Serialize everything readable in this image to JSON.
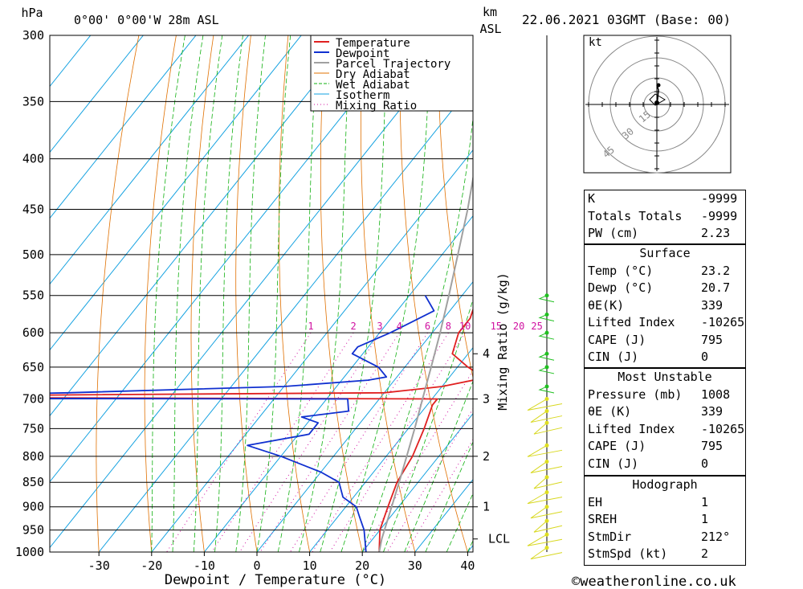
{
  "header": {
    "pressure_unit": "hPa",
    "location": "0°00' 0°00'W 28m ASL",
    "height_unit_line1": "km",
    "height_unit_line2": "ASL",
    "datetime": "22.06.2021 03GMT (Base: 00)"
  },
  "chart_data": {
    "type": "skewt",
    "xlabel": "Dewpoint / Temperature (°C)",
    "ylabel_left": "hPa",
    "ylabel_right": "Mixing Ratio (g/kg)",
    "pressure_levels": [
      300,
      350,
      400,
      450,
      500,
      550,
      600,
      650,
      700,
      750,
      800,
      850,
      900,
      950,
      1000
    ],
    "temperature_ticks": [
      -30,
      -20,
      -10,
      0,
      10,
      20,
      30,
      40
    ],
    "xlim": [
      -40,
      40
    ],
    "ylim": [
      1000,
      300
    ],
    "height_ticks_km": [
      {
        "label": "1",
        "pressure": 900
      },
      {
        "label": "2",
        "pressure": 800
      },
      {
        "label": "3",
        "pressure": 700
      },
      {
        "label": "4",
        "pressure": 630
      },
      {
        "label": "LCL",
        "pressure": 970
      }
    ],
    "mixing_ratio_labels": [
      "1",
      "2",
      "3",
      "4",
      "6",
      "8",
      "10",
      "15",
      "20",
      "25"
    ],
    "mixing_ratio_values": [
      1,
      2,
      3,
      4,
      6,
      8,
      10,
      15,
      20,
      25
    ],
    "legend": [
      "Temperature",
      "Dewpoint",
      "Parcel Trajectory",
      "Dry Adiabat",
      "Wet Adiabat",
      "Isotherm",
      "Mixing Ratio"
    ],
    "series": [
      {
        "name": "Temperature",
        "color": "#e02020",
        "points": [
          [
            1000,
            23.2
          ],
          [
            950,
            20
          ],
          [
            900,
            18
          ],
          [
            850,
            16
          ],
          [
            800,
            15
          ],
          [
            750,
            13
          ],
          [
            710,
            11
          ],
          [
            700,
            11
          ],
          [
            698,
            -70
          ],
          [
            696,
            -70
          ],
          [
            694,
            -70
          ],
          [
            690,
            0
          ],
          [
            680,
            10
          ],
          [
            670,
            15
          ],
          [
            660,
            15
          ],
          [
            650,
            12
          ],
          [
            630,
            7
          ],
          [
            600,
            5
          ],
          [
            580,
            5
          ],
          [
            550,
            3
          ]
        ]
      },
      {
        "name": "Dewpoint",
        "color": "#1030d0",
        "points": [
          [
            1000,
            20.7
          ],
          [
            950,
            17
          ],
          [
            920,
            14
          ],
          [
            900,
            12
          ],
          [
            880,
            8
          ],
          [
            850,
            5
          ],
          [
            830,
            0
          ],
          [
            800,
            -10
          ],
          [
            780,
            -18
          ],
          [
            760,
            -8
          ],
          [
            740,
            -8
          ],
          [
            730,
            -12
          ],
          [
            720,
            -4
          ],
          [
            700,
            -6
          ],
          [
            699,
            -90
          ],
          [
            697,
            -90
          ],
          [
            695,
            -90
          ],
          [
            690,
            -60
          ],
          [
            680,
            -20
          ],
          [
            670,
            -5
          ],
          [
            665,
            -2
          ],
          [
            650,
            -5
          ],
          [
            630,
            -12
          ],
          [
            620,
            -12
          ],
          [
            600,
            -8
          ],
          [
            570,
            -3
          ],
          [
            550,
            -7
          ]
        ]
      },
      {
        "name": "Parcel Trajectory",
        "color": "#a0a0a0",
        "points": [
          [
            1000,
            23.2
          ],
          [
            970,
            21.7
          ],
          [
            900,
            18.7
          ],
          [
            850,
            16.4
          ],
          [
            800,
            13.9
          ],
          [
            750,
            11.2
          ],
          [
            700,
            8.2
          ],
          [
            650,
            5
          ],
          [
            600,
            1.5
          ],
          [
            550,
            -2.5
          ],
          [
            500,
            -7
          ],
          [
            450,
            -12
          ],
          [
            400,
            -18
          ],
          [
            350,
            -26
          ],
          [
            300,
            -36
          ]
        ]
      }
    ]
  },
  "hodograph": {
    "unit": "kt",
    "ring_labels": [
      "15",
      "30",
      "45"
    ]
  },
  "indices": {
    "top": [
      {
        "label": "K",
        "value": "-9999"
      },
      {
        "label": "Totals Totals",
        "value": "-9999"
      },
      {
        "label": "PW (cm)",
        "value": "2.23"
      }
    ],
    "surface": {
      "title": "Surface",
      "rows": [
        {
          "label": "Temp (°C)",
          "value": "23.2"
        },
        {
          "label": "Dewp (°C)",
          "value": "20.7"
        },
        {
          "label": "θE(K)",
          "value": "339"
        },
        {
          "label": "Lifted Index",
          "value": "-10265"
        },
        {
          "label": "CAPE (J)",
          "value": "795"
        },
        {
          "label": "CIN (J)",
          "value": "0"
        }
      ]
    },
    "most_unstable": {
      "title": "Most Unstable",
      "rows": [
        {
          "label": "Pressure (mb)",
          "value": "1008"
        },
        {
          "label": "θE (K)",
          "value": "339"
        },
        {
          "label": "Lifted Index",
          "value": "-10265"
        },
        {
          "label": "CAPE (J)",
          "value": "795"
        },
        {
          "label": "CIN (J)",
          "value": "0"
        }
      ]
    },
    "hodograph": {
      "title": "Hodograph",
      "rows": [
        {
          "label": "EH",
          "value": "1"
        },
        {
          "label": "SREH",
          "value": "1"
        },
        {
          "label": "StmDir",
          "value": "212°"
        },
        {
          "label": "StmSpd (kt)",
          "value": "2"
        }
      ]
    }
  },
  "footer": {
    "copyright": "©weatheronline.co.uk"
  }
}
